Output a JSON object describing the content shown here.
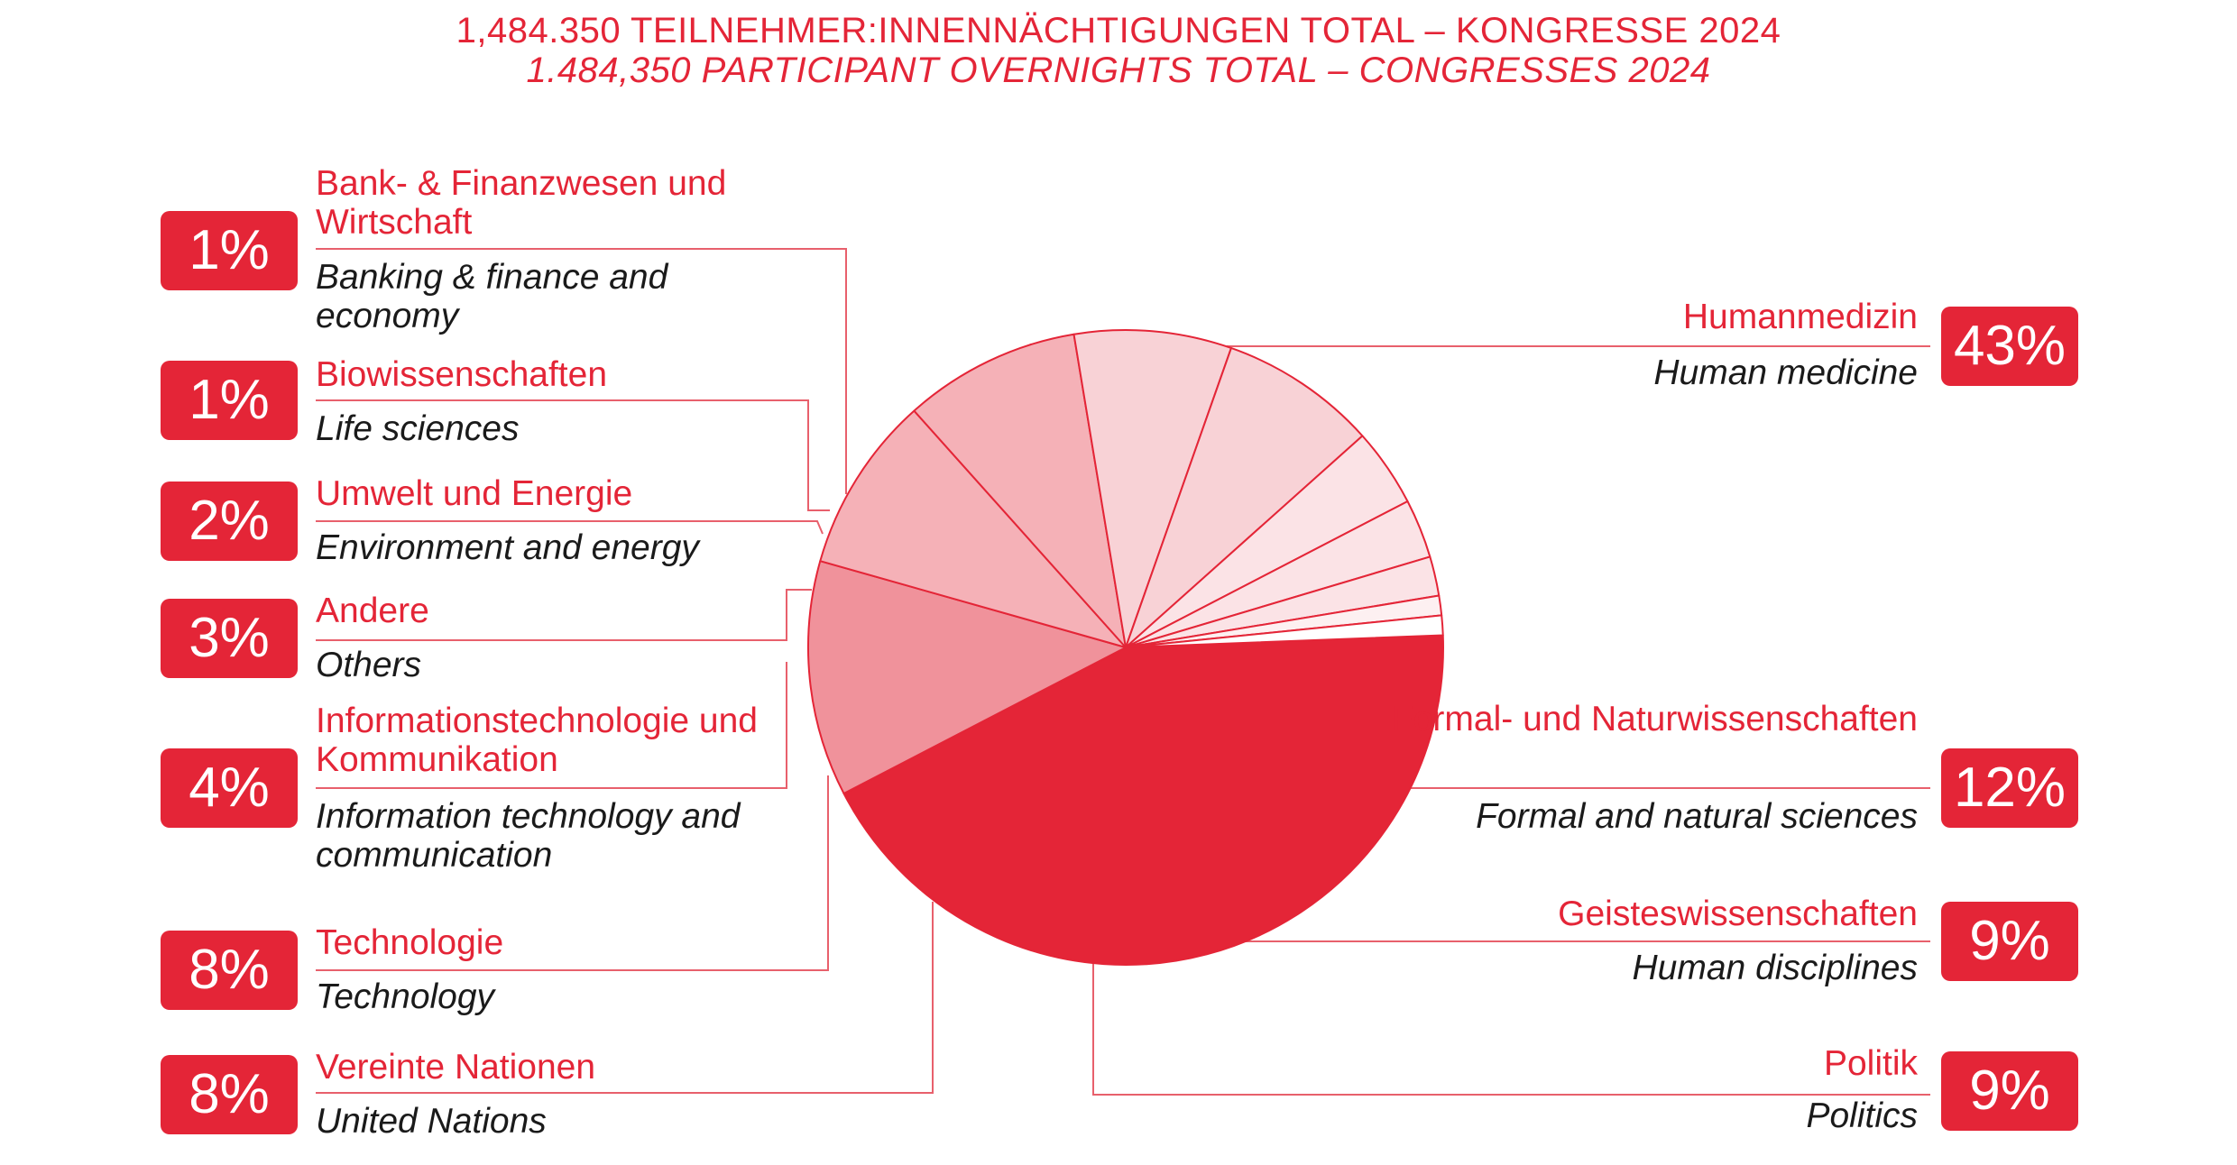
{
  "title_de": "1,484.350 TEILNEHMER:INNENNÄCHTIGUNGEN TOTAL – KONGRESSE 2024",
  "title_en": "1.484,350 PARTICIPANT OVERNIGHTS TOTAL – CONGRESSES 2024",
  "colors": {
    "accent": "#e42537",
    "text": "#1a1a1a",
    "line": "#e8606c"
  },
  "chart_data": {
    "type": "pie",
    "title": "1,484.350 TEILNEHMER:INNENNÄCHTIGUNGEN TOTAL – KONGRESSE 2024",
    "start_angle_deg": -2.2,
    "direction": "clockwise",
    "slices": [
      {
        "percent": "43%",
        "value": 43,
        "label_de": "Humanmedizin",
        "label_en": "Human medicine",
        "color": "#e42537"
      },
      {
        "percent": "12%",
        "value": 12,
        "label_de": "Formal- und Naturwissenschaften",
        "label_en": "Formal and natural sciences",
        "color": "#f0929b"
      },
      {
        "percent": "9%",
        "value": 9,
        "label_de": "Geisteswissenschaften",
        "label_en": "Human disciplines",
        "color": "#f5b1b7"
      },
      {
        "percent": "9%",
        "value": 9,
        "label_de": "Politik",
        "label_en": "Politics",
        "color": "#f5b1b7"
      },
      {
        "percent": "8%",
        "value": 8,
        "label_de": "Vereinte Nationen",
        "label_en": "United Nations",
        "color": "#f8d2d6"
      },
      {
        "percent": "8%",
        "value": 8,
        "label_de": "Technologie",
        "label_en": "Technology",
        "color": "#f8d2d6"
      },
      {
        "percent": "4%",
        "value": 4,
        "label_de": "Informationstechnologie und Kommunikation",
        "label_en": "Information technology and communication",
        "color": "#fbe3e6"
      },
      {
        "percent": "3%",
        "value": 3,
        "label_de": "Andere",
        "label_en": "Others",
        "color": "#fbe3e6"
      },
      {
        "percent": "2%",
        "value": 2,
        "label_de": "Umwelt und Energie",
        "label_en": "Environment and energy",
        "color": "#fbe3e6"
      },
      {
        "percent": "1%",
        "value": 1,
        "label_de": "Biowissenschaften",
        "label_en": "Life sciences",
        "color": "#fdf0f1"
      },
      {
        "percent": "1%",
        "value": 1,
        "label_de": "Bank- & Finanzwesen und Wirtschaft",
        "label_en": "Banking & finance and economy",
        "color": "#ffffff"
      }
    ]
  }
}
